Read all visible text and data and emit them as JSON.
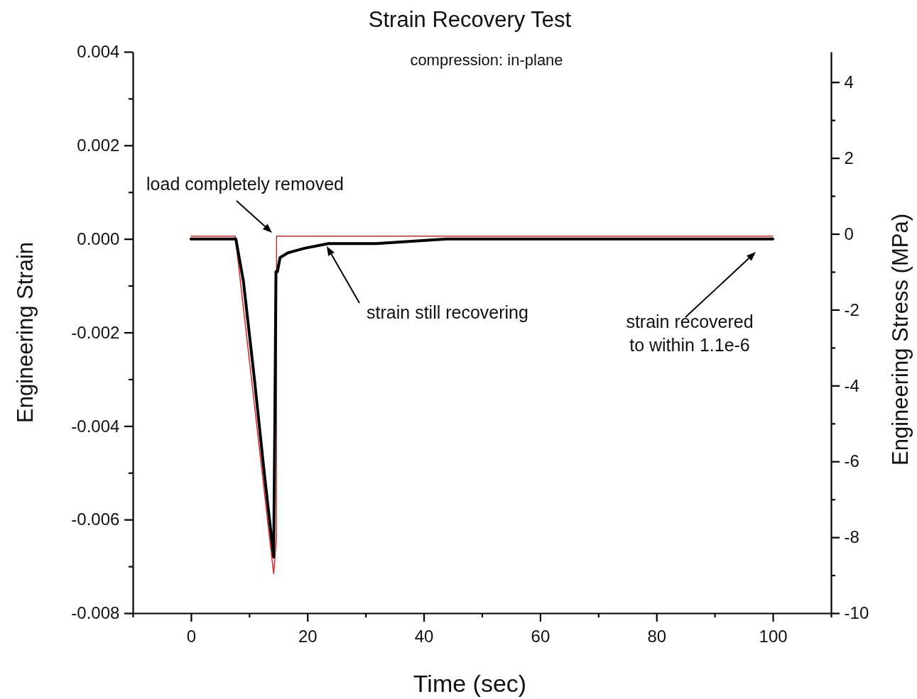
{
  "chart_data": {
    "type": "line",
    "title": "Strain Recovery Test",
    "subtitle": "compression: in-plane",
    "xlabel": "Time (sec)",
    "ylabel": "Engineering Strain",
    "y2label": "Engineering Stress (MPa)",
    "xlim": [
      -10,
      110
    ],
    "xticks": [
      {
        "value": -10,
        "label": null
      },
      0,
      {
        "value": 10,
        "label": null
      },
      20,
      {
        "value": 30,
        "label": null
      },
      40,
      {
        "value": 50,
        "label": null
      },
      60,
      {
        "value": 70,
        "label": null
      },
      80,
      {
        "value": 90,
        "label": null
      },
      100,
      {
        "value": 110,
        "label": null
      }
    ],
    "ylim": [
      -0.008,
      0.004
    ],
    "yticks": [
      -0.008,
      {
        "value": -0.007,
        "label": null
      },
      -0.006,
      {
        "value": -0.005,
        "label": null
      },
      -0.004,
      {
        "value": -0.003,
        "label": null
      },
      -0.002,
      {
        "value": -0.001,
        "label": null
      },
      {
        "value": 0,
        "label": "0.000"
      },
      {
        "value": 0.001,
        "label": null
      },
      0.002,
      {
        "value": 0.003,
        "label": null
      },
      0.004
    ],
    "y2lim": [
      -10,
      4.8
    ],
    "y2ticks": [
      -10,
      {
        "value": -9,
        "label": null
      },
      -8,
      {
        "value": -7,
        "label": null
      },
      -6,
      {
        "value": -5,
        "label": null
      },
      -4,
      {
        "value": -3,
        "label": null
      },
      -2,
      {
        "value": -1,
        "label": null
      },
      0,
      {
        "value": 1,
        "label": null
      },
      2,
      {
        "value": 3,
        "label": null
      },
      4
    ],
    "grid": false,
    "marker": "none",
    "line_style": "solid",
    "series": [
      {
        "color": "#000000",
        "x": [
          0,
          4,
          7.7,
          9,
          10.9,
          12.5,
          14.2,
          14.4,
          14.6,
          14.85,
          15.3,
          16.6,
          19.5,
          23.6,
          31.8,
          44,
          72.6,
          100
        ],
        "values": [
          0,
          0,
          0,
          -0.0009,
          -0.003,
          -0.0049,
          -0.0068,
          -0.004,
          -0.0007,
          -0.0007,
          -0.0004,
          -0.0003,
          -0.0002,
          -0.0001,
          -0.0001,
          0,
          0,
          0
        ]
      },
      {
        "color": "#d62728",
        "axis": "y2",
        "x": [
          0,
          7.6,
          14.2,
          14.7,
          14.7,
          100
        ],
        "values": [
          -0.06,
          -0.06,
          -8.96,
          -8.0,
          -0.06,
          -0.06
        ]
      }
    ],
    "annotations": [
      "load completely removed",
      "strain still recovering",
      "strain recovered\nto within 1.1e-6"
    ]
  }
}
